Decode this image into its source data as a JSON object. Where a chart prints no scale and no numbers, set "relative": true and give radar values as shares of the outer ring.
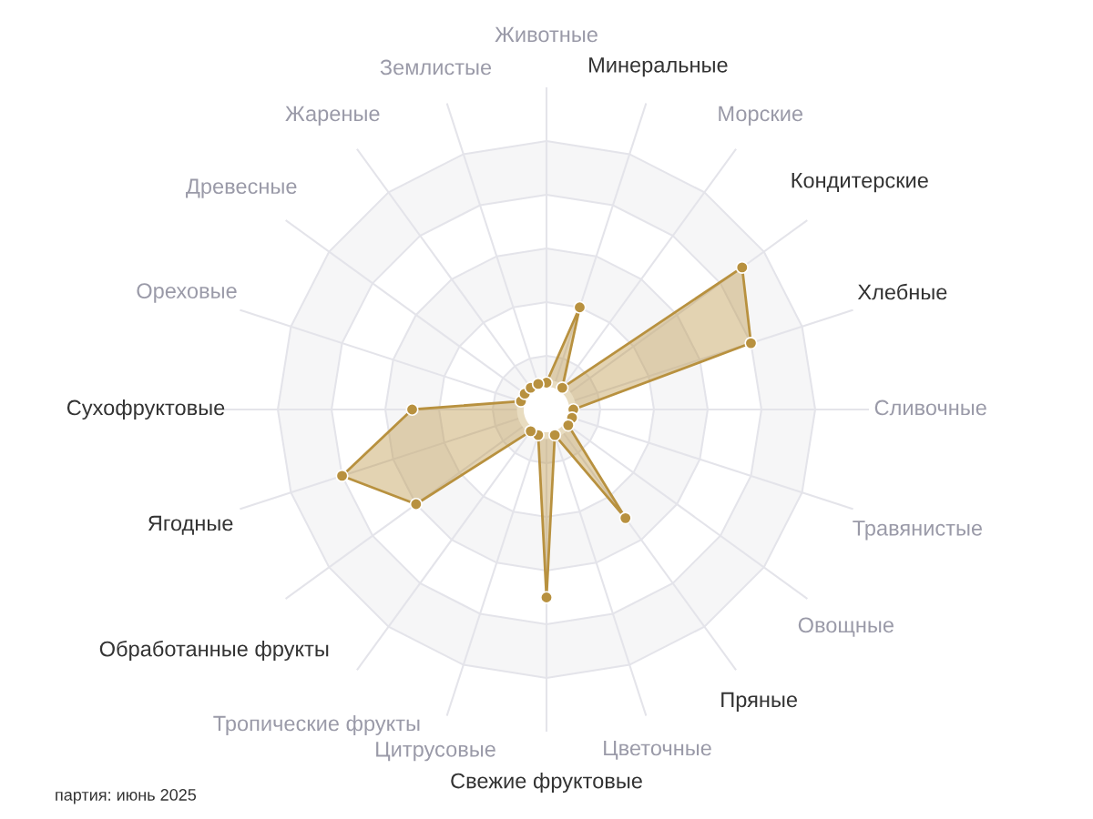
{
  "chart_data": {
    "type": "radar",
    "relative": true,
    "categories": [
      "Животные",
      "Минеральные",
      "Морские",
      "Кондитерские",
      "Хлебные",
      "Сливочные",
      "Травянистые",
      "Овощные",
      "Пряные",
      "Цветочные",
      "Свежие фруктовые",
      "Цитрусовые",
      "Тропические фрукты",
      "Обработанные фрукты",
      "Ягодные",
      "Сухофруктовые",
      "Ореховые",
      "Древесные",
      "Жареные",
      "Землистые"
    ],
    "series": [
      {
        "color": "#b8913f",
        "values": [
          0.1,
          0.4,
          0.1,
          0.9,
          0.8,
          0.1,
          0.1,
          0.1,
          0.5,
          0.1,
          0.7,
          0.1,
          0.1,
          0.6,
          0.8,
          0.5,
          0.1,
          0.1,
          0.1,
          0.1
        ]
      }
    ],
    "marker": "circle",
    "line_style": "solid",
    "grid": true,
    "annotations": [
      "партия: июнь 2025"
    ]
  }
}
